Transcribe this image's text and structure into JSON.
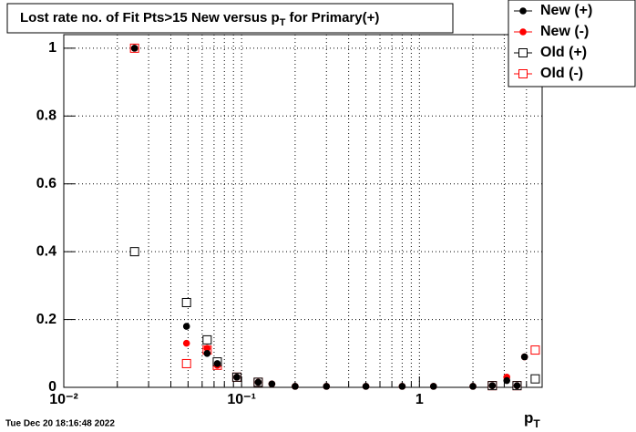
{
  "chart_data": {
    "type": "scatter",
    "title": {
      "main": "Lost rate no. of Fit Pts>15 New versus p",
      "sub": "T",
      "end": " for Primary(+)"
    },
    "x_label": {
      "main": "p",
      "sub": "T"
    },
    "timestamp": "Tue Dec 20 18:16:48 2022",
    "log_x": true,
    "grid": true,
    "legend": "top-right",
    "xlim": [
      0.01,
      4.9
    ],
    "ylim": [
      0,
      1.04
    ],
    "xticks": [
      {
        "value": 0.01,
        "label": "10⁻²"
      },
      {
        "value": 0.1,
        "label": "10⁻¹"
      },
      1
    ],
    "yticks": [
      0,
      0.2,
      0.4,
      0.6,
      0.8,
      1
    ],
    "series": [
      {
        "name": "New (+)",
        "color": "#000000",
        "marker": "circle",
        "x": [
          0.025,
          0.049,
          0.064,
          0.073,
          0.094,
          0.124,
          0.148,
          0.2,
          0.3,
          0.5,
          0.8,
          1.2,
          2.0,
          2.57,
          3.1,
          3.54,
          3.9
        ],
        "values": [
          1,
          0.18,
          0.1,
          0.07,
          0.03,
          0.015,
          0.01,
          0.003,
          0.003,
          0.003,
          0.003,
          0.003,
          0.003,
          0.005,
          0.02,
          0.005,
          0.09
        ]
      },
      {
        "name": "New (-)",
        "color": "#ff0000",
        "marker": "circle",
        "x": [
          0.025,
          0.049,
          0.064,
          0.073,
          0.094,
          0.124,
          0.148,
          0.2,
          0.3,
          0.5,
          0.8,
          1.2,
          2.0,
          2.57,
          3.1,
          3.54,
          3.9
        ],
        "values": [
          1,
          0.13,
          0.115,
          0.065,
          0.03,
          0.015,
          0.01,
          0.003,
          0.003,
          0.003,
          0.003,
          0.003,
          0.003,
          0.005,
          0.03,
          0.005,
          0.09
        ]
      },
      {
        "name": "Old (+)",
        "color": "#000000",
        "marker": "square",
        "x": [
          0.025,
          0.049,
          0.064,
          0.073,
          0.094,
          0.124,
          2.57,
          3.54,
          4.48
        ],
        "values": [
          0.4,
          0.25,
          0.14,
          0.075,
          0.03,
          0.015,
          0.005,
          0.005,
          0.025
        ]
      },
      {
        "name": "Old (-)",
        "color": "#ff0000",
        "marker": "square",
        "x": [
          0.025,
          0.049,
          0.064,
          0.073,
          0.094,
          0.124,
          2.57,
          3.54,
          4.48
        ],
        "values": [
          1,
          0.07,
          0.11,
          0.065,
          0.03,
          0.015,
          0.005,
          0.005,
          0.11
        ]
      }
    ]
  }
}
